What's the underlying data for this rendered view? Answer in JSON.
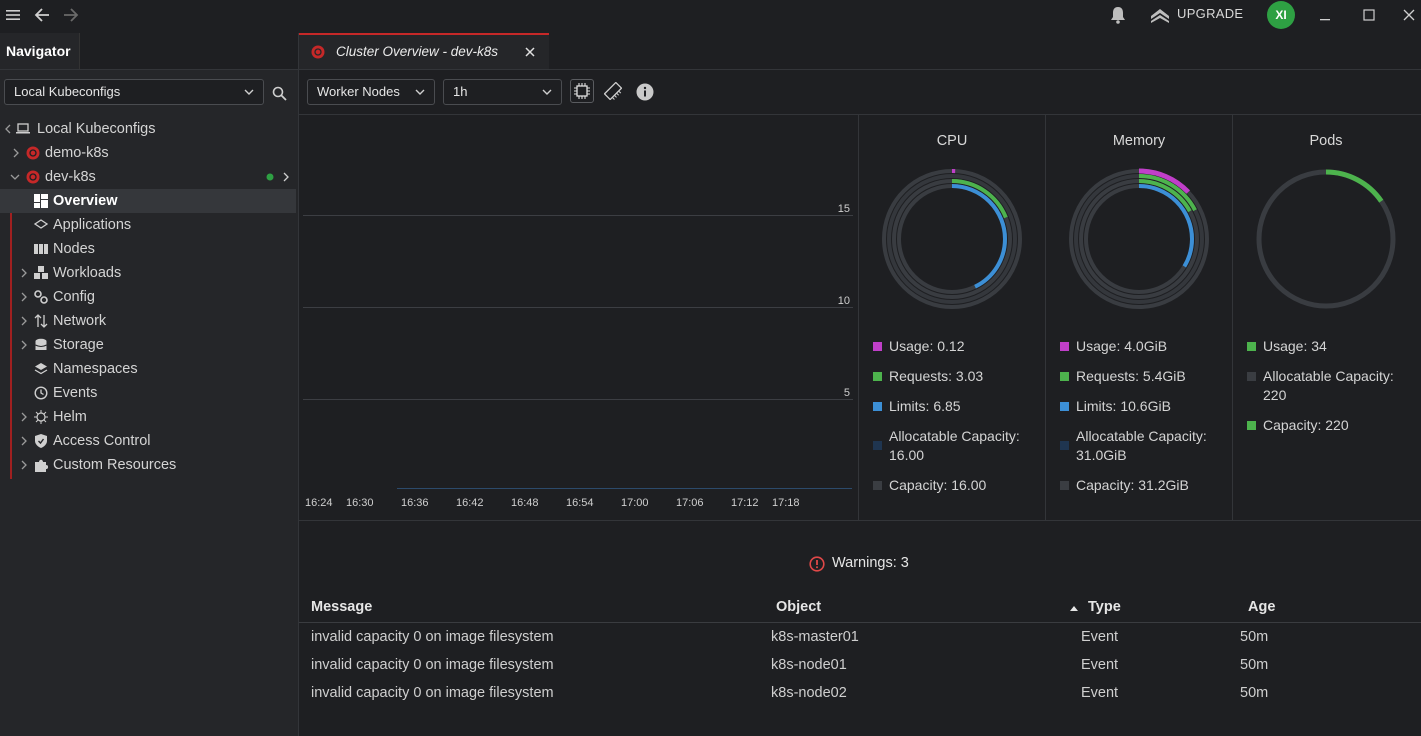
{
  "titlebar": {
    "upgrade_label": "UPGRADE",
    "avatar_initials": "XI"
  },
  "sidebar": {
    "tab_label": "Navigator",
    "kubeconfig_select": "Local Kubeconfigs",
    "tree": {
      "root": "Local Kubeconfigs",
      "clusters": [
        "demo-k8s",
        "dev-k8s"
      ],
      "items": [
        "Overview",
        "Applications",
        "Nodes",
        "Workloads",
        "Config",
        "Network",
        "Storage",
        "Namespaces",
        "Events",
        "Helm",
        "Access Control",
        "Custom Resources"
      ]
    }
  },
  "main": {
    "tab_title": "Cluster Overview - dev-k8s",
    "toolbar": {
      "node_filter": "Worker Nodes",
      "time_range": "1h"
    },
    "chart": {
      "y_ticks": [
        "15",
        "10",
        "5"
      ],
      "x_ticks": [
        "16:24",
        "16:30",
        "16:36",
        "16:42",
        "16:48",
        "16:54",
        "17:00",
        "17:06",
        "17:12",
        "17:18"
      ]
    },
    "cpu": {
      "title": "CPU",
      "usage": "Usage: 0.12",
      "requests": "Requests: 3.03",
      "limits": "Limits: 6.85",
      "allocatable": "Allocatable Capacity: 16.00",
      "capacity": "Capacity: 16.00"
    },
    "memory": {
      "title": "Memory",
      "usage": "Usage: 4.0GiB",
      "requests": "Requests: 5.4GiB",
      "limits": "Limits: 10.6GiB",
      "allocatable": "Allocatable Capacity: 31.0GiB",
      "capacity": "Capacity: 31.2GiB"
    },
    "pods": {
      "title": "Pods",
      "usage": "Usage: 34",
      "allocatable": "Allocatable Capacity: 220",
      "capacity": "Capacity: 220"
    },
    "warnings": {
      "label": "Warnings: 3",
      "columns": [
        "Message",
        "Object",
        "Type",
        "Age"
      ],
      "rows": [
        {
          "message": "invalid capacity 0 on image filesystem",
          "object": "k8s-master01",
          "type": "Event",
          "age": "50m"
        },
        {
          "message": "invalid capacity 0 on image filesystem",
          "object": "k8s-node01",
          "type": "Event",
          "age": "50m"
        },
        {
          "message": "invalid capacity 0 on image filesystem",
          "object": "k8s-node02",
          "type": "Event",
          "age": "50m"
        }
      ]
    }
  },
  "colors": {
    "usage": "#c03fc9",
    "requests": "#4db34d",
    "limits": "#3c8fd6",
    "allocatable": "#1f3550",
    "capacity": "#3a3d42",
    "accent": "#c62828",
    "status_ok": "#2ea043"
  }
}
